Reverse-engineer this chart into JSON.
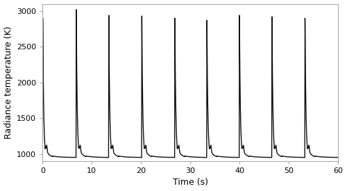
{
  "title": "",
  "xlabel": "Time (s)",
  "ylabel": "Radiance temperature (K)",
  "xlim": [
    0,
    60
  ],
  "ylim": [
    900,
    3100
  ],
  "yticks": [
    1000,
    1500,
    2000,
    2500,
    3000
  ],
  "xticks": [
    0,
    10,
    20,
    30,
    40,
    50,
    60
  ],
  "line_color": "#111111",
  "line_width": 1.0,
  "background_color": "#ffffff",
  "baseline": 950,
  "pulse_starts": [
    0.0,
    6.8,
    13.4,
    20.1,
    26.8,
    33.3,
    39.9,
    46.5,
    53.2
  ],
  "peak_temps": [
    2900,
    3020,
    2940,
    2930,
    2900,
    2870,
    2940,
    2920,
    2900
  ],
  "xlabel_fontsize": 9,
  "ylabel_fontsize": 9,
  "tick_fontsize": 8
}
